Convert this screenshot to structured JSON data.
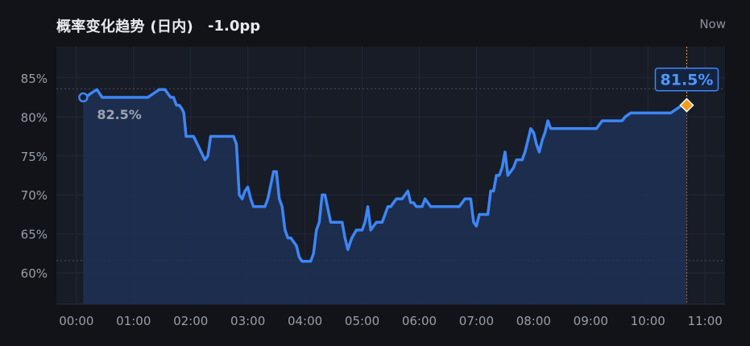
{
  "header": {
    "title": "概率变化趋势 (日内)",
    "delta": "-1.0pp",
    "now_label": "Now"
  },
  "colors": {
    "background": "#111318",
    "plot_background": "#181c27",
    "line": "#3d86f5",
    "fill": "#1f3055",
    "end_marker": "#f39c1f",
    "grid": "#232838",
    "ref_line": "#4c4f5c",
    "now_line": "#f39c1f"
  },
  "chart_data": {
    "type": "area",
    "title": "概率变化趋势 (日内)",
    "xlabel": "",
    "ylabel": "",
    "x_tick_labels": [
      "00:00",
      "01:00",
      "02:00",
      "03:00",
      "04:00",
      "05:00",
      "06:00",
      "07:00",
      "08:00",
      "09:00",
      "10:00",
      "11:00"
    ],
    "y_tick_labels": [
      "60%",
      "65%",
      "70%",
      "75%",
      "80%",
      "85%"
    ],
    "x_ticks_hours": [
      0,
      1,
      2,
      3,
      4,
      5,
      6,
      7,
      8,
      9,
      10,
      11
    ],
    "y_ticks": [
      60,
      65,
      70,
      75,
      80,
      85
    ],
    "xlim": [
      -0.35,
      11.35
    ],
    "ylim": [
      56,
      89
    ],
    "grid": true,
    "start": {
      "label": "82.5%",
      "value": 82.5
    },
    "end": {
      "label": "81.5%",
      "value": 81.5
    },
    "reference_lines": [
      83.6,
      61.6
    ],
    "series": [
      {
        "x": [
          0.12,
          0.16,
          0.25,
          0.36,
          0.45,
          0.55,
          0.65,
          0.76,
          0.85,
          0.95,
          1.05,
          1.15,
          1.25,
          1.35,
          1.45,
          1.52,
          1.55,
          1.6,
          1.65,
          1.7,
          1.75,
          1.8,
          1.85,
          1.88,
          1.92,
          1.97,
          2.0,
          2.05,
          2.15,
          2.25,
          2.3,
          2.35,
          2.4,
          2.45,
          2.55,
          2.65,
          2.75,
          2.8,
          2.85,
          2.9,
          2.95,
          3.0,
          3.05,
          3.1,
          3.2,
          3.25,
          3.3,
          3.35,
          3.45,
          3.5,
          3.55,
          3.6,
          3.65,
          3.7,
          3.75,
          3.85,
          3.9,
          3.95,
          4.0,
          4.05,
          4.1,
          4.15,
          4.2,
          4.25,
          4.3,
          4.35,
          4.45,
          4.5,
          4.55,
          4.6,
          4.65,
          4.7,
          4.75,
          4.82,
          4.9,
          4.95,
          5.0,
          5.05,
          5.1,
          5.15,
          5.2,
          5.25,
          5.3,
          5.35,
          5.45,
          5.5,
          5.55,
          5.6,
          5.65,
          5.7,
          5.8,
          5.85,
          5.9,
          5.95,
          6.0,
          6.05,
          6.1,
          6.2,
          6.3,
          6.4,
          6.5,
          6.6,
          6.7,
          6.8,
          6.85,
          6.9,
          6.95,
          7.0,
          7.05,
          7.1,
          7.15,
          7.2,
          7.25,
          7.3,
          7.35,
          7.4,
          7.45,
          7.5,
          7.55,
          7.6,
          7.65,
          7.7,
          7.75,
          7.8,
          7.85,
          7.9,
          7.95,
          8.0,
          8.05,
          8.1,
          8.15,
          8.2,
          8.25,
          8.3,
          8.35,
          8.4,
          8.45,
          8.5,
          8.55,
          8.6,
          8.7,
          8.8,
          8.9,
          9.0,
          9.1,
          9.15,
          9.2,
          9.3,
          9.4,
          9.5,
          9.55,
          9.6,
          9.7,
          9.8,
          9.9,
          10.0,
          10.1,
          10.2,
          10.3,
          10.4,
          10.5,
          10.6,
          10.68
        ],
        "values": [
          82.5,
          82.5,
          83.0,
          83.5,
          82.5,
          82.5,
          82.5,
          82.5,
          82.5,
          82.5,
          82.5,
          82.5,
          82.5,
          83.0,
          83.5,
          83.5,
          83.5,
          83.0,
          82.5,
          82.5,
          81.5,
          81.5,
          81.0,
          80.5,
          77.5,
          77.5,
          77.5,
          77.5,
          76.0,
          74.5,
          75.0,
          77.5,
          77.5,
          77.5,
          77.5,
          77.5,
          77.5,
          76.5,
          70.0,
          69.5,
          70.5,
          71.0,
          69.5,
          68.5,
          68.5,
          68.5,
          68.5,
          69.5,
          73.0,
          73.0,
          69.5,
          68.5,
          65.5,
          64.5,
          64.5,
          63.5,
          62.0,
          61.5,
          61.5,
          61.5,
          61.5,
          62.5,
          65.5,
          66.5,
          70.0,
          70.0,
          66.5,
          66.5,
          66.5,
          66.5,
          66.5,
          64.5,
          63.0,
          64.5,
          65.5,
          65.5,
          65.5,
          66.5,
          68.5,
          65.5,
          66.0,
          66.5,
          66.5,
          66.5,
          68.5,
          68.5,
          69.0,
          69.5,
          69.5,
          69.5,
          70.5,
          69.0,
          69.0,
          68.5,
          68.5,
          68.5,
          69.5,
          68.5,
          68.5,
          68.5,
          68.5,
          68.5,
          68.5,
          69.5,
          69.5,
          69.5,
          66.5,
          66.0,
          67.5,
          67.5,
          67.5,
          67.5,
          70.5,
          70.5,
          72.5,
          72.5,
          73.5,
          75.5,
          72.5,
          73.0,
          73.5,
          74.5,
          74.5,
          74.5,
          75.5,
          77.0,
          78.5,
          78.0,
          76.5,
          75.5,
          77.0,
          78.0,
          79.5,
          78.5,
          78.5,
          78.5,
          78.5,
          78.5,
          78.5,
          78.5,
          78.5,
          78.5,
          78.5,
          78.5,
          78.5,
          79.0,
          79.5,
          79.5,
          79.5,
          79.5,
          79.5,
          80.0,
          80.5,
          80.5,
          80.5,
          80.5,
          80.5,
          80.5,
          80.5,
          80.5,
          81.0,
          81.5,
          81.5
        ]
      }
    ]
  }
}
